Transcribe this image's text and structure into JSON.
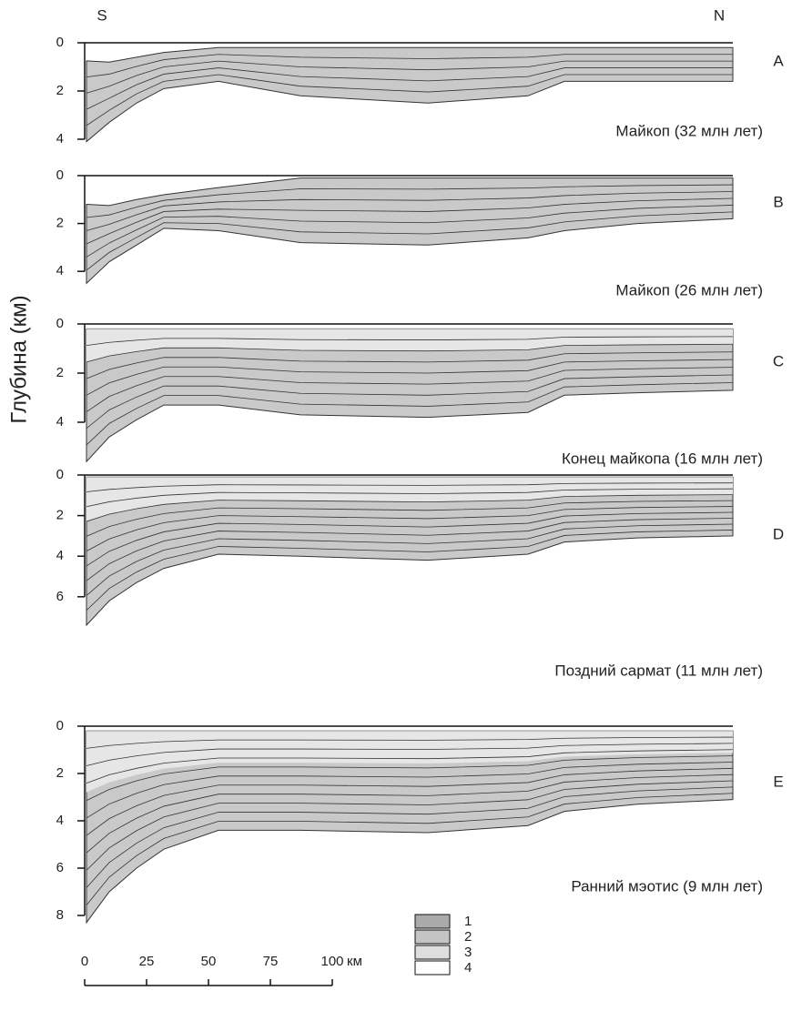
{
  "labels": {
    "south": "S",
    "north": "N"
  },
  "y_axis_title": "Глубина (км)",
  "panels": [
    {
      "letter": "A",
      "caption": "Майкоп (32 млн лет)",
      "depth_ticks": [
        0,
        2,
        4
      ]
    },
    {
      "letter": "B",
      "caption": "Майкоп (26 млн лет)",
      "depth_ticks": [
        0,
        2,
        4
      ]
    },
    {
      "letter": "C",
      "caption": "Конец майкопа (16 млн лет)",
      "depth_ticks": [
        0,
        2,
        4
      ]
    },
    {
      "letter": "D",
      "caption": "Поздний сармат (11 млн лет)",
      "depth_ticks": [
        0,
        2,
        4,
        6
      ]
    },
    {
      "letter": "E",
      "caption": "Ранний мэотис (9 млн лет)",
      "depth_ticks": [
        0,
        2,
        4,
        6,
        8
      ]
    }
  ],
  "scale_bar": {
    "ticks": [
      0,
      25,
      50,
      75,
      100
    ],
    "unit": "км"
  },
  "legend": [
    "1",
    "2",
    "3",
    "4"
  ]
}
